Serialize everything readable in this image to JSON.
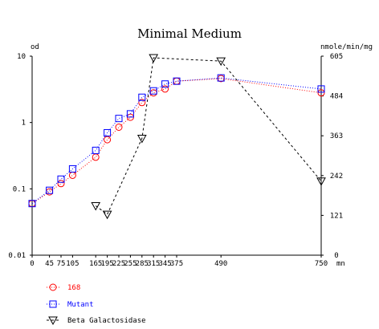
{
  "chart_data": {
    "type": "line",
    "title": "Minimal Medium",
    "left_axis": {
      "unit_label": "od",
      "scale": "log",
      "ylim": [
        0.01,
        10
      ],
      "tick_labels": [
        "10",
        "1",
        "0.1",
        "0.01"
      ],
      "tick_values": [
        10,
        1,
        0.1,
        0.01
      ]
    },
    "right_axis": {
      "unit_label": "nmole/min/mg",
      "scale": "linear",
      "ylim": [
        0,
        605
      ],
      "tick_labels": [
        "605",
        "484",
        "363",
        "242",
        "121",
        "0"
      ],
      "tick_values": [
        605,
        484,
        363,
        242,
        121,
        0
      ]
    },
    "x_axis": {
      "unit_label": "mn",
      "xlim": [
        0,
        750
      ],
      "tick_labels": [
        "0",
        "45",
        "75",
        "105",
        "165",
        "195",
        "225",
        "255",
        "285",
        "315",
        "345",
        "375",
        "490",
        "750"
      ],
      "tick_values": [
        0,
        45,
        75,
        105,
        165,
        195,
        225,
        255,
        285,
        315,
        345,
        375,
        490,
        750
      ]
    },
    "series": [
      {
        "name": "168",
        "axis": "left",
        "marker": "circle",
        "color": "#ff0000",
        "line_style": "dotted",
        "x": [
          0,
          45,
          75,
          105,
          165,
          195,
          225,
          255,
          285,
          315,
          345,
          375,
          490,
          750
        ],
        "y": [
          0.06,
          0.09,
          0.12,
          0.16,
          0.3,
          0.55,
          0.85,
          1.2,
          2.0,
          2.8,
          3.2,
          4.2,
          4.6,
          2.8
        ]
      },
      {
        "name": "Mutant",
        "axis": "left",
        "marker": "square",
        "color": "#0000ff",
        "line_style": "dotted",
        "x": [
          0,
          45,
          75,
          105,
          165,
          195,
          225,
          255,
          285,
          315,
          345,
          375,
          490,
          750
        ],
        "y": [
          0.06,
          0.095,
          0.14,
          0.2,
          0.38,
          0.7,
          1.15,
          1.35,
          2.4,
          3.0,
          3.8,
          4.2,
          4.7,
          3.2
        ]
      },
      {
        "name": "Beta Galactosidase",
        "axis": "right",
        "marker": "triangle-down",
        "color": "#000000",
        "line_style": "dashed",
        "x": [
          165,
          195,
          285,
          315,
          490,
          750
        ],
        "y": [
          150,
          124,
          355,
          600,
          590,
          225
        ]
      }
    ],
    "legend_placement": "bottom-left",
    "grid": false
  }
}
